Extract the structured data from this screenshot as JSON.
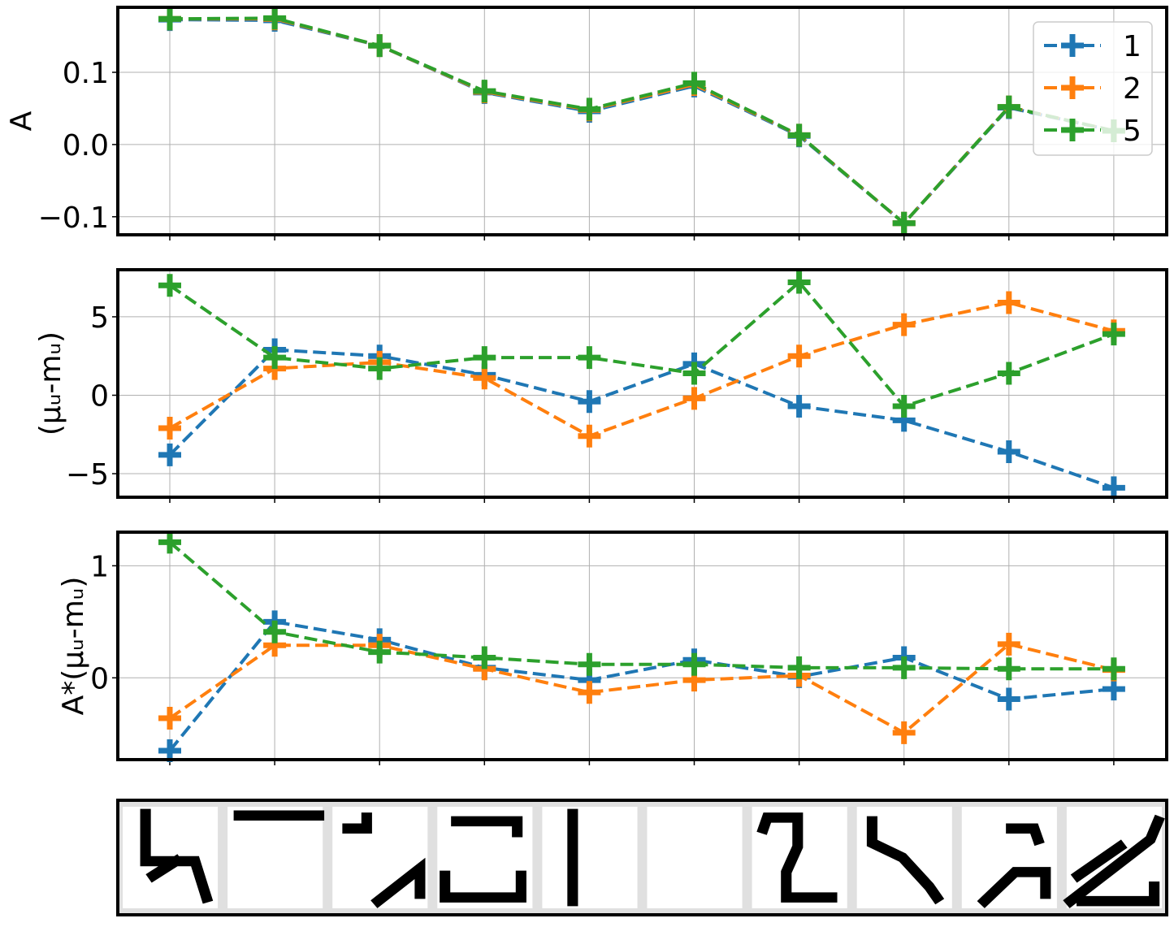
{
  "chart_data": [
    {
      "type": "line",
      "ylabel": "A",
      "ylim": [
        -0.125,
        0.19
      ],
      "yticks": [
        0.1,
        0.0,
        -0.1
      ],
      "ytick_labels": [
        "0.1",
        "0.0",
        "−0.1"
      ],
      "x": [
        1,
        2,
        3,
        4,
        5,
        6,
        7,
        8,
        9,
        10
      ],
      "grid": true,
      "legend": {
        "placement": "top-right",
        "entries": [
          "1",
          "2",
          "5"
        ]
      },
      "series": [
        {
          "name": "1",
          "color": "#1f77b4",
          "values": [
            0.173,
            0.172,
            0.137,
            0.072,
            0.046,
            0.081,
            0.012,
            -0.109,
            0.051,
            0.019
          ]
        },
        {
          "name": "2",
          "color": "#ff7f0e",
          "values": [
            0.174,
            0.174,
            0.137,
            0.073,
            0.048,
            0.083,
            0.013,
            -0.109,
            0.052,
            0.019
          ]
        },
        {
          "name": "5",
          "color": "#2ca02c",
          "values": [
            0.174,
            0.175,
            0.137,
            0.074,
            0.049,
            0.085,
            0.013,
            -0.109,
            0.052,
            0.019
          ]
        }
      ]
    },
    {
      "type": "line",
      "ylabel": "(μᵤ-mᵤ)",
      "ylim": [
        -6.5,
        8.0
      ],
      "yticks": [
        5,
        0,
        -5
      ],
      "ytick_labels": [
        "5",
        "0",
        "−5"
      ],
      "x": [
        1,
        2,
        3,
        4,
        5,
        6,
        7,
        8,
        9,
        10
      ],
      "grid": true,
      "series": [
        {
          "name": "1",
          "color": "#1f77b4",
          "values": [
            -3.8,
            2.9,
            2.5,
            1.3,
            -0.4,
            2.0,
            -0.7,
            -1.6,
            -3.6,
            -5.9
          ]
        },
        {
          "name": "2",
          "color": "#ff7f0e",
          "values": [
            -2.1,
            1.7,
            2.1,
            1.1,
            -2.6,
            -0.2,
            2.5,
            4.5,
            5.9,
            4.1
          ]
        },
        {
          "name": "5",
          "color": "#2ca02c",
          "values": [
            7.0,
            2.4,
            1.7,
            2.4,
            2.4,
            1.4,
            7.2,
            -0.7,
            1.4,
            3.9
          ]
        }
      ]
    },
    {
      "type": "line",
      "ylabel": "A*(μᵤ-mᵤ)",
      "ylim": [
        -0.73,
        1.3
      ],
      "yticks": [
        1,
        0
      ],
      "ytick_labels": [
        "1",
        "0"
      ],
      "x": [
        1,
        2,
        3,
        4,
        5,
        6,
        7,
        8,
        9,
        10
      ],
      "grid": true,
      "series": [
        {
          "name": "1",
          "color": "#1f77b4",
          "values": [
            -0.65,
            0.5,
            0.34,
            0.09,
            -0.02,
            0.16,
            0.01,
            0.18,
            -0.19,
            -0.1
          ]
        },
        {
          "name": "2",
          "color": "#ff7f0e",
          "values": [
            -0.36,
            0.29,
            0.29,
            0.08,
            -0.13,
            -0.02,
            0.02,
            -0.49,
            0.3,
            0.07
          ]
        },
        {
          "name": "5",
          "color": "#2ca02c",
          "values": [
            1.21,
            0.41,
            0.23,
            0.18,
            0.12,
            0.12,
            0.09,
            0.09,
            0.08,
            0.08
          ]
        }
      ]
    }
  ],
  "image_strip": {
    "description_count": 10,
    "fill_color": "#000000",
    "background_color": "#ffffff",
    "border_color": "#e0e0e0"
  }
}
